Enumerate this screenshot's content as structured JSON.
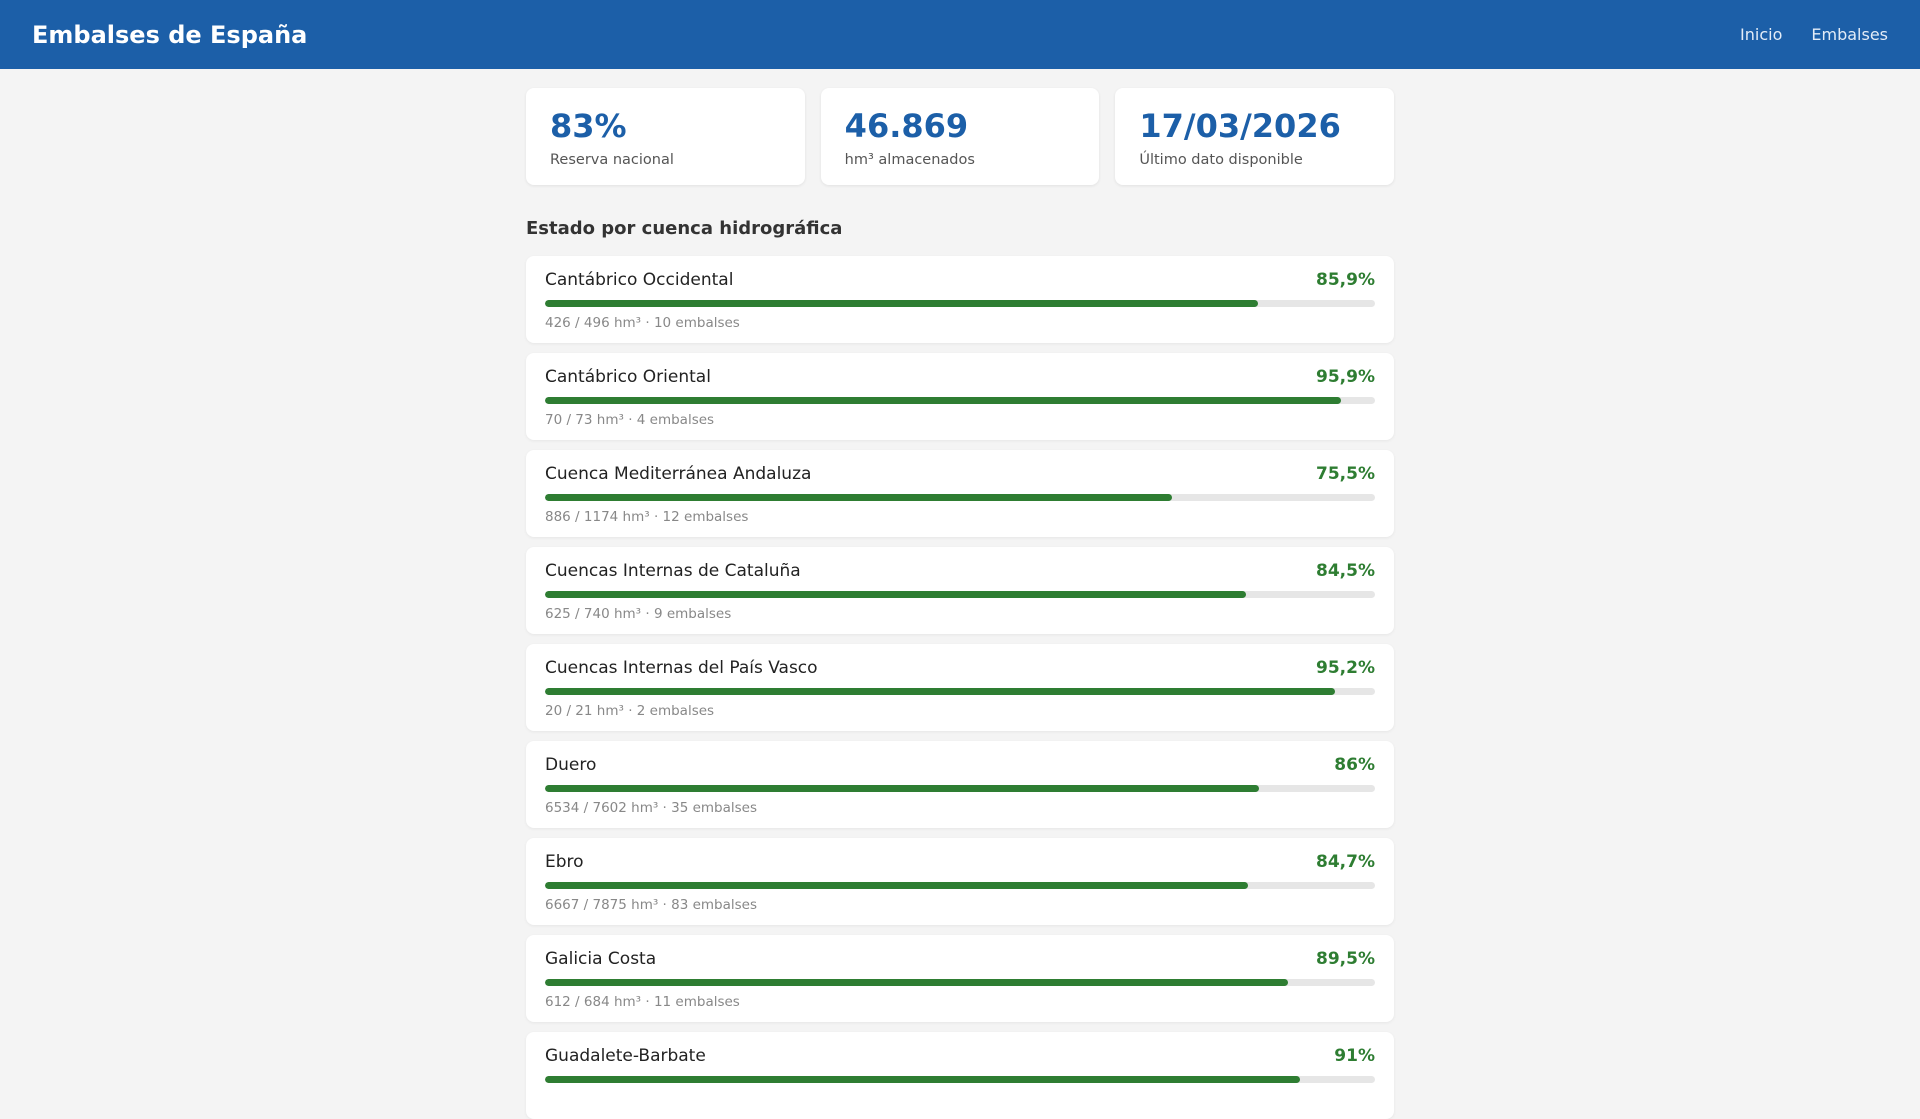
{
  "header": {
    "title": "Embalses de España",
    "nav": [
      "Inicio",
      "Embalses"
    ]
  },
  "stats": [
    {
      "value": "83%",
      "label": "Reserva nacional"
    },
    {
      "value": "46.869",
      "label": "hm³ almacenados"
    },
    {
      "value": "17/03/2026",
      "label": "Último dato disponible"
    }
  ],
  "section_title": "Estado por cuenca hidrográfica",
  "colors": {
    "brand": "#1c5fa8",
    "fill": "#2e7d32",
    "track": "#e6e6e6"
  },
  "basins": [
    {
      "name": "Cantábrico Occidental",
      "pct_label": "85,9%",
      "pct": 85.9,
      "detail": "426 / 496 hm³ · 10 embalses"
    },
    {
      "name": "Cantábrico Oriental",
      "pct_label": "95,9%",
      "pct": 95.9,
      "detail": "70 / 73 hm³ · 4 embalses"
    },
    {
      "name": "Cuenca Mediterránea Andaluza",
      "pct_label": "75,5%",
      "pct": 75.5,
      "detail": "886 / 1174 hm³ · 12 embalses"
    },
    {
      "name": "Cuencas Internas de Cataluña",
      "pct_label": "84,5%",
      "pct": 84.5,
      "detail": "625 / 740 hm³ · 9 embalses"
    },
    {
      "name": "Cuencas Internas del País Vasco",
      "pct_label": "95,2%",
      "pct": 95.2,
      "detail": "20 / 21 hm³ · 2 embalses"
    },
    {
      "name": "Duero",
      "pct_label": "86%",
      "pct": 86,
      "detail": "6534 / 7602 hm³ · 35 embalses"
    },
    {
      "name": "Ebro",
      "pct_label": "84,7%",
      "pct": 84.7,
      "detail": "6667 / 7875 hm³ · 83 embalses"
    },
    {
      "name": "Galicia Costa",
      "pct_label": "89,5%",
      "pct": 89.5,
      "detail": "612 / 684 hm³ · 11 embalses"
    },
    {
      "name": "Guadalete-Barbate",
      "pct_label": "91%",
      "pct": 91
    }
  ]
}
